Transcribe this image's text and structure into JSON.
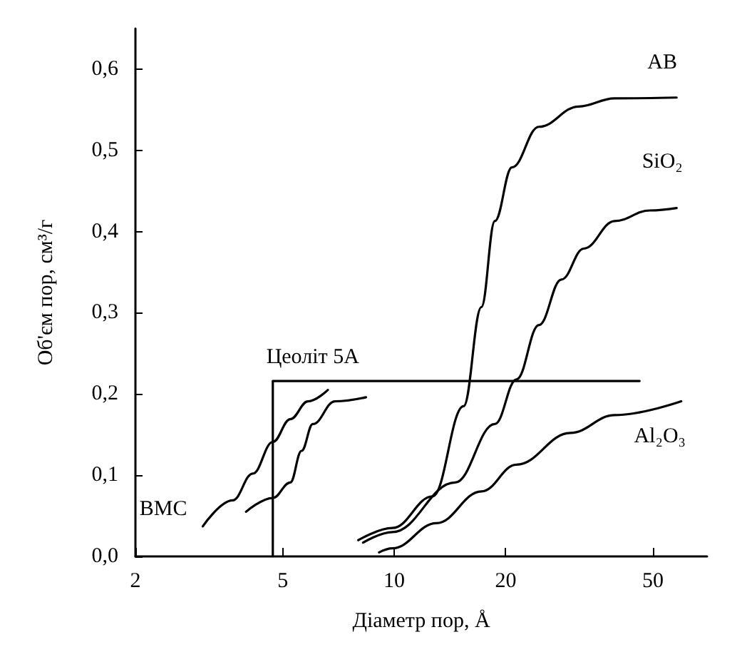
{
  "chart_data": {
    "type": "line",
    "xlabel": "Діаметр пор, Å",
    "ylabel": "Об'єм пор, см³/г",
    "log": "x",
    "grid": false,
    "legend": false,
    "marker": "none",
    "line_style": "solid",
    "xlim": [
      2,
      70
    ],
    "xticks": [
      2,
      5,
      10,
      20,
      50
    ],
    "ylim": [
      0,
      0.65
    ],
    "yticks": [
      {
        "value": 0,
        "label": "0,0"
      },
      {
        "value": 0.1,
        "label": "0,1"
      },
      {
        "value": 0.2,
        "label": "0,2"
      },
      {
        "value": 0.3,
        "label": "0,3"
      },
      {
        "value": 0.4,
        "label": "0,4"
      },
      {
        "value": 0.5,
        "label": "0,5"
      },
      {
        "value": 0.6,
        "label": "0,6"
      }
    ],
    "series": [
      {
        "name": "AB",
        "color": "#000000",
        "x": [
          8.0,
          9.89,
          12.7,
          15.4,
          17.2,
          18.7,
          20.8,
          24.6,
          31.5,
          39.4,
          57.9
        ],
        "values": [
          0.02,
          0.035,
          0.074,
          0.185,
          0.307,
          0.413,
          0.479,
          0.529,
          0.554,
          0.564,
          0.565
        ]
      },
      {
        "name": "SiO₂",
        "color": "#000000",
        "x": [
          8.24,
          9.89,
          14.6,
          18.7,
          21.4,
          24.6,
          28.3,
          32.5,
          39.4,
          49.1,
          57.9
        ],
        "values": [
          0.017,
          0.03,
          0.091,
          0.163,
          0.218,
          0.285,
          0.341,
          0.379,
          0.413,
          0.426,
          0.429
        ]
      },
      {
        "name": "Al₂O₃",
        "color": "#000000",
        "x": [
          9.1,
          9.89,
          13.0,
          17.2,
          21.4,
          29.9,
          39.4,
          59.6
        ],
        "values": [
          0.005,
          0.01,
          0.041,
          0.08,
          0.113,
          0.152,
          0.174,
          0.191
        ]
      },
      {
        "name": "Цеоліт 5A",
        "color": "#000000",
        "x": [
          4.7,
          4.7,
          46
        ],
        "values": [
          0,
          0.216,
          0.216
        ]
      },
      {
        "name": "ВМС",
        "color": "#000000",
        "x": [
          3.04,
          3.66,
          4.15,
          4.7,
          5.24,
          5.85,
          6.62
        ],
        "values": [
          0.037,
          0.069,
          0.102,
          0.141,
          0.169,
          0.191,
          0.205
        ]
      },
      {
        "color": "#000000",
        "x": [
          3.98,
          4.7,
          5.24,
          5.62,
          6.03,
          6.92,
          8.39
        ],
        "values": [
          0.055,
          0.072,
          0.091,
          0.13,
          0.163,
          0.191,
          0.196
        ]
      }
    ]
  }
}
